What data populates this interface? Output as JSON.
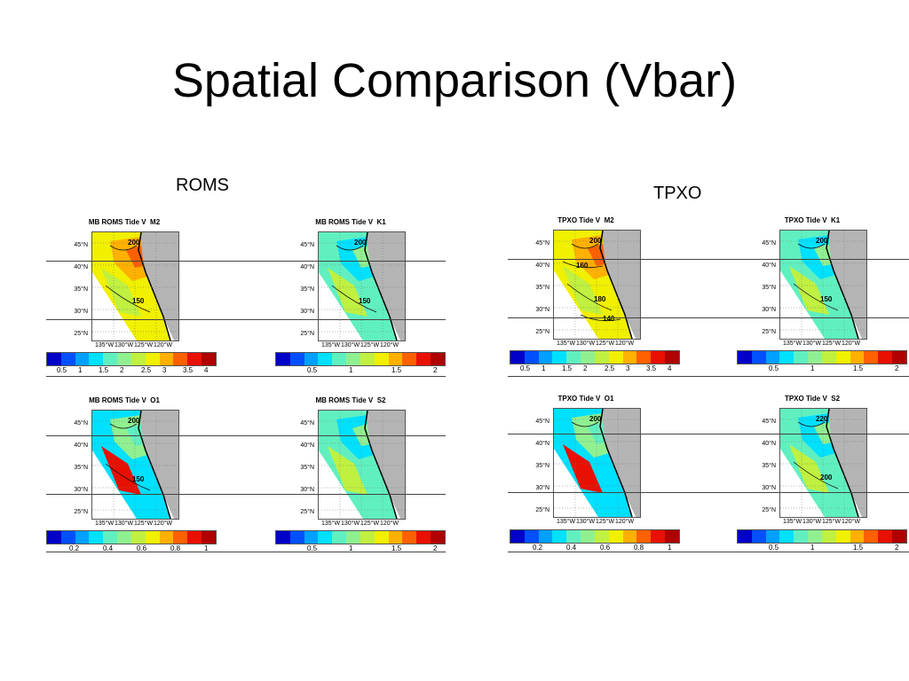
{
  "title": "Spatial Comparison (Vbar)",
  "groups": {
    "roms": "ROMS",
    "tpxo": "TPXO"
  },
  "lat_labels": [
    "45°N",
    "40°N",
    "35°N",
    "30°N",
    "25°N"
  ],
  "lon_labels": [
    "135°W",
    "130°W",
    "125°W",
    "120°W"
  ],
  "panels": [
    {
      "title": "MB ROMS Tide V  M2",
      "contours": [
        "200",
        "150"
      ],
      "scale": "s1",
      "theme": "hot"
    },
    {
      "title": "MB ROMS Tide V  K1",
      "contours": [
        "200",
        "150"
      ],
      "scale": "s2",
      "theme": "cool"
    },
    {
      "title": "MB ROMS Tide V  O1",
      "contours": [
        "200",
        "150"
      ],
      "scale": "s3",
      "theme": "mid"
    },
    {
      "title": "MB ROMS Tide V  S2",
      "contours": [],
      "scale": "s2",
      "theme": "cool"
    },
    {
      "title": "TPXO Tide V  M2",
      "contours": [
        "200",
        "180",
        "160",
        "140"
      ],
      "scale": "s1",
      "theme": "hot"
    },
    {
      "title": "TPXO Tide V  K1",
      "contours": [
        "200",
        "150"
      ],
      "scale": "s2",
      "theme": "cool"
    },
    {
      "title": "TPXO Tide V  O1",
      "contours": [
        "200"
      ],
      "scale": "s3",
      "theme": "mid"
    },
    {
      "title": "TPXO Tide V  S2",
      "contours": [
        "220",
        "200"
      ],
      "scale": "s2",
      "theme": "cool"
    }
  ],
  "colorbars": {
    "s1": [
      "0.5",
      "1",
      "1.5",
      "2",
      "2.5",
      "3",
      "3.5",
      "4"
    ],
    "s2": [
      "0.5",
      "1",
      "1.5",
      "2"
    ],
    "s3": [
      "0.2",
      "0.4",
      "0.6",
      "0.8",
      "1"
    ]
  },
  "colors": {
    "land": "#b4b4b4",
    "colormap": [
      "#0000c8",
      "#0050ff",
      "#00a0ff",
      "#00e0ff",
      "#60f0c0",
      "#90f090",
      "#c0f040",
      "#f0f000",
      "#ffb000",
      "#ff6000",
      "#e81000",
      "#b00000"
    ]
  }
}
